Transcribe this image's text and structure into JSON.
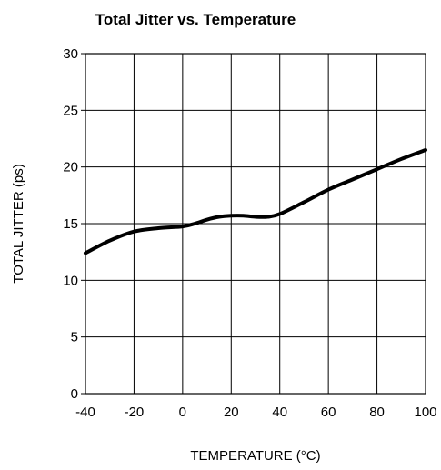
{
  "chart_data": {
    "type": "line",
    "title": "Total Jitter vs. Temperature",
    "xlabel": "TEMPERATURE (°C)",
    "ylabel": "TOTAL JITTER (ps)",
    "xlim": [
      -40,
      100
    ],
    "ylim": [
      0,
      30
    ],
    "x_ticks": [
      "-40",
      "-20",
      "0",
      "20",
      "40",
      "60",
      "80",
      "100"
    ],
    "y_ticks": [
      "0",
      "5",
      "10",
      "15",
      "20",
      "25",
      "30"
    ],
    "grid": true,
    "legend": "none",
    "line_color": "#000000",
    "series": [
      {
        "x": [
          -40,
          -30,
          -20,
          -10,
          0,
          5,
          10,
          15,
          20,
          25,
          30,
          35,
          40,
          50,
          60,
          70,
          80,
          90,
          100
        ],
        "values": [
          12.4,
          13.5,
          14.3,
          14.6,
          14.75,
          15.0,
          15.35,
          15.6,
          15.7,
          15.7,
          15.6,
          15.6,
          15.85,
          16.9,
          18.0,
          18.9,
          19.8,
          20.7,
          21.5
        ]
      }
    ]
  }
}
